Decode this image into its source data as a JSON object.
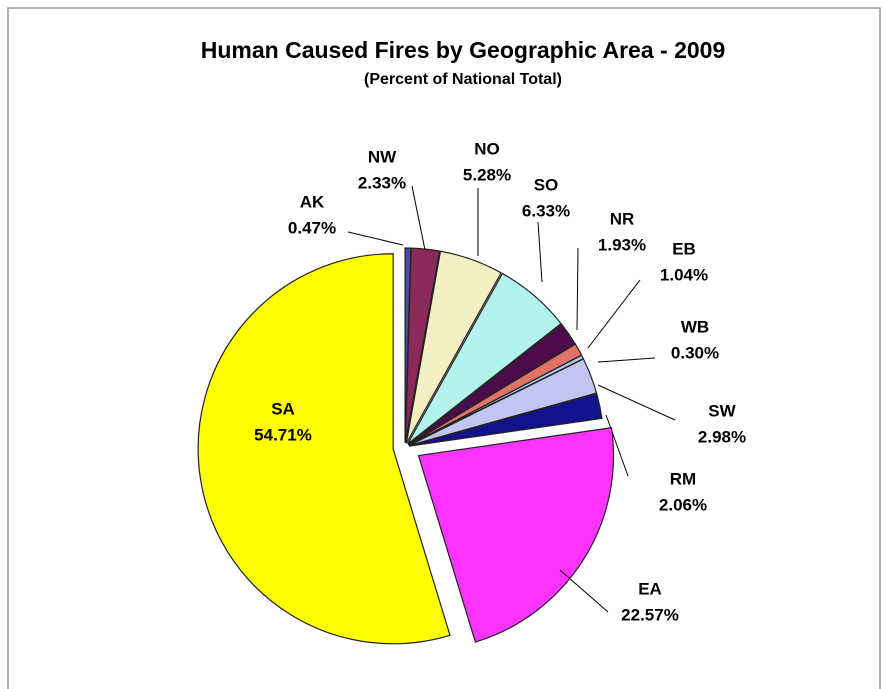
{
  "chart_data": {
    "type": "pie",
    "title": "Human Caused Fires by Geographic Area - 2009",
    "subtitle": "(Percent of National Total)",
    "categories": [
      "AK",
      "NW",
      "NO",
      "SO",
      "NR",
      "EB",
      "WB",
      "SW",
      "RM",
      "EA",
      "SA"
    ],
    "values": [
      0.47,
      2.33,
      5.28,
      6.33,
      1.93,
      1.04,
      0.3,
      2.98,
      2.06,
      22.57,
      54.71
    ],
    "value_labels": [
      "0.47%",
      "2.33%",
      "5.28%",
      "6.33%",
      "1.93%",
      "1.04%",
      "0.30%",
      "2.98%",
      "2.06%",
      "22.57%",
      "54.71%"
    ],
    "colors": [
      "#4a4aa8",
      "#8b2a5a",
      "#f4f0c4",
      "#b4f2ee",
      "#4c0c4c",
      "#e07268",
      "#a8d4ff",
      "#c4c4f2",
      "#12128c",
      "#ff33ff",
      "#ffff00"
    ]
  }
}
